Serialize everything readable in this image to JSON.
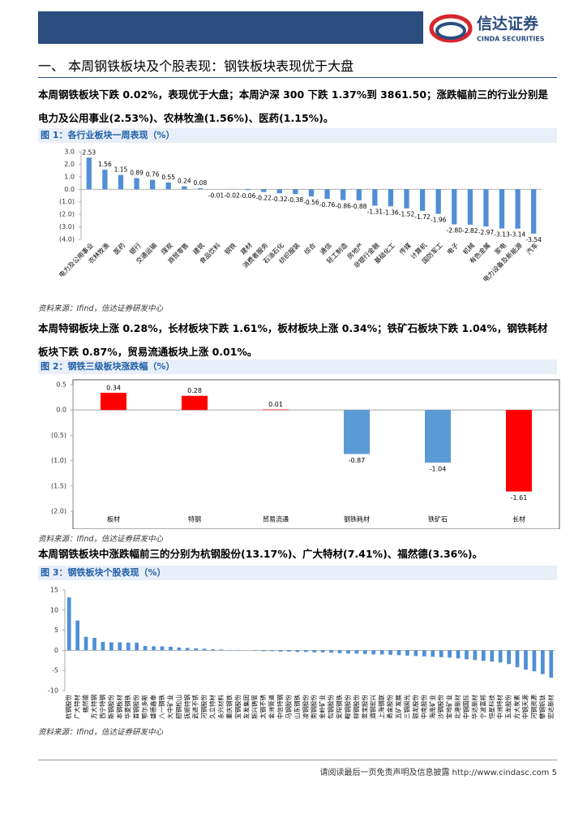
{
  "header": {
    "logo_cn": "信达证券",
    "logo_en": "CINDA SECURITIES"
  },
  "section_title": "一、  本周钢铁板块及个股表现：钢铁板块表现优于大盘",
  "paragraphs": [
    "本周钢铁板块下跌 0.02%，表现优于大盘；本周沪深 300 下跌 1.37%到 3861.50；涨跌幅前三的行业分别是电力及公用事业(2.53%)、农林牧渔(1.56%)、医药(1.15%)。",
    "本周特钢板块上涨 0.28%，长材板块下跌 1.61%，板材板块上涨 0.34%；铁矿石板块下跌 1.04%，钢铁耗材板块下跌 0.87%，贸易流通板块上涨 0.01%。",
    "本周钢铁板块中涨跌幅前三的分别为杭钢股份(13.17%)、广大特材(7.41%)、福然德(3.36%)。"
  ],
  "chart_data": [
    {
      "type": "bar",
      "title": "图 1：各行业板块一周表现（%）",
      "source": "资料来源：Ifind，信达证券研发中心",
      "categories": [
        "电力及公用事业",
        "农林牧渔",
        "医药",
        "银行",
        "交通运输",
        "煤炭",
        "商贸零售",
        "建筑",
        "食品饮料",
        "钢铁",
        "建材",
        "消费者服务",
        "石油石化",
        "纺织服装",
        "综合",
        "通信",
        "轻工制造",
        "房地产",
        "非银行金融",
        "基础化工",
        "传媒",
        "计算机",
        "国防军工",
        "电子",
        "机械",
        "有色金属",
        "家电",
        "电力设备及新能源",
        "汽车"
      ],
      "values": [
        2.53,
        1.56,
        1.15,
        0.89,
        0.76,
        0.55,
        0.24,
        0.08,
        -0.01,
        -0.02,
        -0.06,
        -0.22,
        -0.32,
        -0.38,
        -0.56,
        -0.76,
        -0.86,
        -0.88,
        -1.31,
        -1.36,
        -1.52,
        -1.72,
        -1.96,
        -2.8,
        -2.82,
        -2.97,
        -3.13,
        -3.14,
        -3.54
      ],
      "value_labels": [
        "2.53",
        "1.56",
        "1.15",
        "0.89",
        "0.76",
        "0.55",
        "0.24",
        "0.08",
        "-0.01",
        "-0.02",
        "-0.06",
        "-0.22",
        "-0.32",
        "-0.38",
        "-0.56",
        "-0.76",
        "-0.86",
        "-0.88",
        "-1.31",
        "-1.36",
        "-1.52",
        "-1.72",
        "-1.96",
        "-2.80",
        "-2.82",
        "-2.97",
        "-3.13",
        "-3.14",
        "-3.54"
      ],
      "color": "#4f8fd6",
      "ylim": [
        -4,
        3
      ],
      "yticks": [
        {
          "value": 3,
          "label": "3.0"
        },
        {
          "value": 2,
          "label": "2.0"
        },
        {
          "value": 1,
          "label": "1.0"
        },
        {
          "value": 0,
          "label": "0.0"
        },
        {
          "value": -1,
          "label": "(1.0)"
        },
        {
          "value": -2,
          "label": "(2.0)"
        },
        {
          "value": -3,
          "label": "(3.0)"
        },
        {
          "value": -4,
          "label": "(4.0)"
        }
      ]
    },
    {
      "type": "bar",
      "title": "图 2：钢铁三级板块涨跌幅（%）",
      "source": "资料来源：Ifind，信达证券研发中心",
      "categories": [
        "板材",
        "特钢",
        "贸易流通",
        "钢铁耗材",
        "铁矿石",
        "长材"
      ],
      "values": [
        0.34,
        0.28,
        0.01,
        -0.87,
        -1.04,
        -1.61
      ],
      "colors": [
        "#ff0000",
        "#ff0000",
        "#ff0000",
        "#5b9bd5",
        "#5b9bd5",
        "#ff0000"
      ],
      "ylim": [
        -2,
        0.5
      ],
      "yticks": [
        0.5,
        {
          "value": 0,
          "label": "0.0"
        },
        {
          "value": -0.5,
          "label": "(0.5)"
        },
        {
          "value": -1,
          "label": "(1.0)"
        },
        {
          "value": -1.5,
          "label": "(1.5)"
        },
        {
          "value": -2,
          "label": "(2.0)"
        }
      ]
    },
    {
      "type": "bar",
      "title": "图 3：钢铁板块个股表现（%）",
      "source": "资料来源：Ifind，信达证券研发中心",
      "categories": [
        "杭钢股份",
        "广大特材",
        "福然德",
        "方大特钢",
        "西宁特钢",
        "新钢股份",
        "本钢板材",
        "华菱钢铁",
        "首钢股份",
        "鄂尔多斯",
        "盛德鑫泰",
        "八一钢铁",
        "大中矿业",
        "韶钢松山",
        "抚顺特钢",
        "武进不锈",
        "河钢股份",
        "久立特材",
        "永兴材料",
        "重庆钢铁",
        "宝钢股份",
        "友发集团",
        "新兴铸管",
        "太钢不锈",
        "金洲管道",
        "中信特钢",
        "马钢股份",
        "山东钢铁",
        "凌钢股份",
        "南钢股份",
        "金岭矿业",
        "包钢股份",
        "安阳钢铁",
        "鞍钢股份",
        "柳钢股份",
        "常宝股份",
        "酒钢宏兴",
        "上海钢联",
        "甬金股份",
        "五矿发展",
        "三钢闽光",
        "银龙股份",
        "中南股份",
        "海南矿业",
        "沙钢股份",
        "宝地矿业",
        "北港新材",
        "中钢国际",
        "华达新材",
        "宁波富邦",
        "恒星科技",
        "中洲特材",
        "玉龙股份",
        "方大炭素",
        "中钢天源",
        "河钢资源",
        "攀钢钒钛",
        "宏达新材"
      ],
      "values": [
        13.17,
        7.41,
        3.36,
        3.1,
        2.1,
        2.0,
        2.0,
        1.9,
        1.9,
        1.1,
        1.0,
        1.0,
        0.9,
        0.7,
        0.6,
        0.5,
        0.4,
        0.3,
        0.2,
        0.1,
        0.1,
        0.05,
        -0.1,
        -0.2,
        -0.2,
        -0.3,
        -0.3,
        -0.4,
        -0.4,
        -0.5,
        -0.5,
        -0.6,
        -0.7,
        -0.8,
        -0.8,
        -0.9,
        -1.0,
        -1.0,
        -1.1,
        -1.2,
        -1.3,
        -1.4,
        -1.5,
        -1.6,
        -1.7,
        -1.8,
        -2.0,
        -2.2,
        -2.4,
        -2.6,
        -2.8,
        -3.0,
        -3.4,
        -4.2,
        -4.8,
        -5.2,
        -5.9,
        -6.8
      ],
      "color": "#4f8fd6",
      "ylim": [
        -10,
        15
      ],
      "yticks": [
        15,
        10,
        5,
        0,
        -5,
        -10
      ]
    }
  ],
  "footer": {
    "text": "请阅读最后一页免责声明及信息披露 http://www.cindasc.com",
    "page": "5"
  }
}
